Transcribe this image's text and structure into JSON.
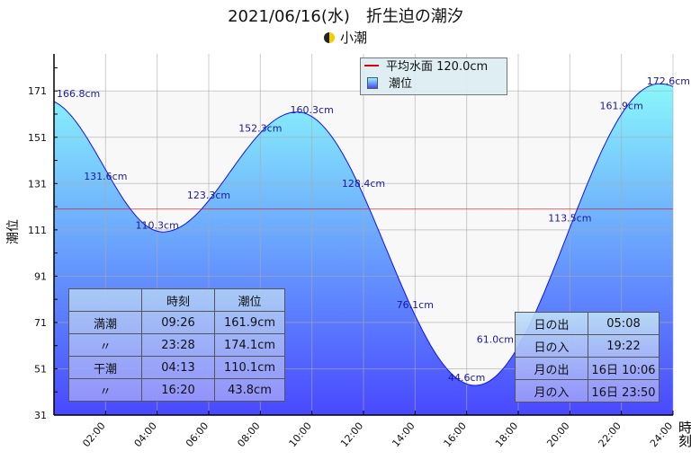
{
  "chart_data": {
    "type": "area",
    "title": "2021/06/16(水)　折生迫の潮汐",
    "subtitle": "小潮",
    "moon_icon": "half-moon-icon",
    "xlabel": "時刻",
    "ylabel": "潮位",
    "xlim": [
      0,
      24
    ],
    "ylim": [
      31,
      187
    ],
    "yticks": [
      31,
      51,
      71,
      91,
      111,
      131,
      151,
      171
    ],
    "xticks": [
      "02:00",
      "04:00",
      "06:00",
      "08:00",
      "10:00",
      "12:00",
      "14:00",
      "16:00",
      "18:00",
      "20:00",
      "22:00",
      "24:00"
    ],
    "grid": true,
    "mean_level": 120.0,
    "extrema": [
      {
        "t": -0.4,
        "h": 167.5
      },
      {
        "t": 4.22,
        "h": 110.1
      },
      {
        "t": 9.43,
        "h": 161.9
      },
      {
        "t": 16.33,
        "h": 43.8
      },
      {
        "t": 23.47,
        "h": 174.1
      },
      {
        "t": 29.6,
        "h": 110
      }
    ],
    "point_labels": [
      {
        "t": 0,
        "h": 166.8,
        "label": "166.8cm"
      },
      {
        "t": 2,
        "h": 131.6,
        "label": "131.6cm"
      },
      {
        "t": 4,
        "h": 110.3,
        "label": "110.3cm"
      },
      {
        "t": 6,
        "h": 123.3,
        "label": "123.3cm"
      },
      {
        "t": 8,
        "h": 152.3,
        "label": "152.3cm"
      },
      {
        "t": 10,
        "h": 160.3,
        "label": "160.3cm"
      },
      {
        "t": 12,
        "h": 128.4,
        "label": "128.4cm"
      },
      {
        "t": 14,
        "h": 76.1,
        "label": "76.1cm"
      },
      {
        "t": 16,
        "h": 44.6,
        "label": "44.6cm"
      },
      {
        "t": 18,
        "h": 61.0,
        "label": "61.0cm"
      },
      {
        "t": 20,
        "h": 113.5,
        "label": "113.5cm"
      },
      {
        "t": 22,
        "h": 161.9,
        "label": "161.9cm"
      },
      {
        "t": 24,
        "h": 172.6,
        "label": "172.6cm"
      }
    ],
    "legend": {
      "placement": "top-right",
      "mean_label": "平均水面 120.0cm",
      "tide_label": "潮位"
    },
    "colors": {
      "line": "#1010ff",
      "fill_top": "#8af8fb",
      "fill_bottom": "#4848ff",
      "mean": "#e00000",
      "label": "#1a1aa0"
    }
  },
  "tide_table": {
    "headers": [
      "",
      "時刻",
      "潮位"
    ],
    "rows": [
      [
        "満潮",
        "09:26",
        "161.9cm"
      ],
      [
        "〃",
        "23:28",
        "174.1cm"
      ],
      [
        "干潮",
        "04:13",
        "110.1cm"
      ],
      [
        "〃",
        "16:20",
        "43.8cm"
      ]
    ]
  },
  "sun_moon_table": {
    "rows": [
      [
        "日の出",
        "05:08"
      ],
      [
        "日の入",
        "19:22"
      ],
      [
        "月の出",
        "16日 10:06"
      ],
      [
        "月の入",
        "16日 23:50"
      ]
    ]
  }
}
